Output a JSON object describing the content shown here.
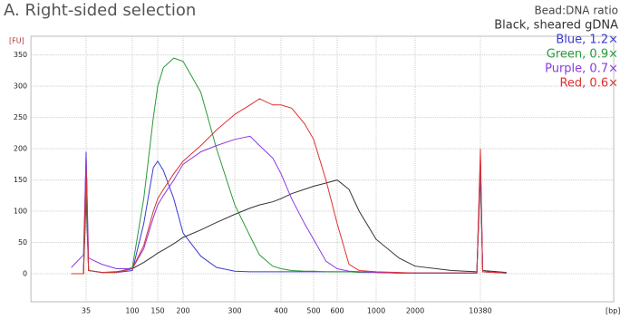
{
  "chart_data": {
    "type": "line",
    "title": "A. Right-sided selection",
    "legend_title": "Bead:DNA ratio",
    "xlabel": "[bp]",
    "ylabel": "[FU]",
    "x": [
      25,
      33,
      35,
      37,
      50,
      70,
      100,
      120,
      140,
      150,
      160,
      180,
      200,
      230,
      260,
      300,
      330,
      350,
      380,
      400,
      430,
      470,
      500,
      550,
      600,
      700,
      800,
      1000,
      1500,
      2000,
      5000,
      9500,
      10380,
      11000,
      20000
    ],
    "series": [
      {
        "name": "Black, sheared gDNA",
        "color": "#333333",
        "values": [
          0,
          0,
          120,
          5,
          2,
          3,
          8,
          18,
          28,
          33,
          38,
          48,
          58,
          70,
          82,
          95,
          105,
          110,
          115,
          120,
          128,
          135,
          140,
          145,
          150,
          135,
          100,
          55,
          25,
          12,
          5,
          3,
          160,
          5,
          2
        ]
      },
      {
        "name": "Blue, 1.2×",
        "color": "#3a3ad4",
        "values": [
          0,
          0,
          195,
          5,
          2,
          2,
          5,
          80,
          170,
          180,
          165,
          120,
          65,
          28,
          10,
          4,
          3,
          3,
          3,
          3,
          3,
          3,
          3,
          3,
          3,
          3,
          3,
          2,
          1,
          1,
          1,
          1,
          180,
          3,
          1
        ]
      },
      {
        "name": "Green, 0.9×",
        "color": "#2a9a3a",
        "values": [
          0,
          0,
          140,
          5,
          2,
          2,
          10,
          120,
          250,
          300,
          330,
          345,
          340,
          290,
          200,
          110,
          60,
          30,
          12,
          8,
          5,
          4,
          4,
          3,
          3,
          3,
          2,
          2,
          1,
          1,
          1,
          1,
          175,
          3,
          1
        ]
      },
      {
        "name": "Purple, 0.7×",
        "color": "#8a3ae0",
        "values": [
          10,
          30,
          190,
          25,
          15,
          8,
          8,
          40,
          90,
          110,
          125,
          150,
          175,
          195,
          205,
          215,
          220,
          205,
          185,
          160,
          120,
          80,
          55,
          20,
          8,
          4,
          3,
          2,
          1,
          1,
          1,
          1,
          185,
          3,
          1
        ]
      },
      {
        "name": "Red, 0.6×",
        "color": "#e03030",
        "values": [
          0,
          0,
          165,
          5,
          2,
          2,
          8,
          45,
          100,
          120,
          135,
          160,
          180,
          205,
          230,
          255,
          270,
          280,
          270,
          270,
          265,
          240,
          215,
          150,
          80,
          15,
          5,
          3,
          2,
          1,
          1,
          1,
          200,
          3,
          1
        ]
      }
    ],
    "xlim": [
      10,
      300000
    ],
    "xticks": [
      35,
      100,
      150,
      200,
      300,
      400,
      500,
      600,
      1000,
      2000,
      10380
    ],
    "ylim": [
      -45,
      380
    ],
    "yticks": [
      0,
      50,
      100,
      150,
      200,
      250,
      300,
      350
    ],
    "grid": true
  }
}
